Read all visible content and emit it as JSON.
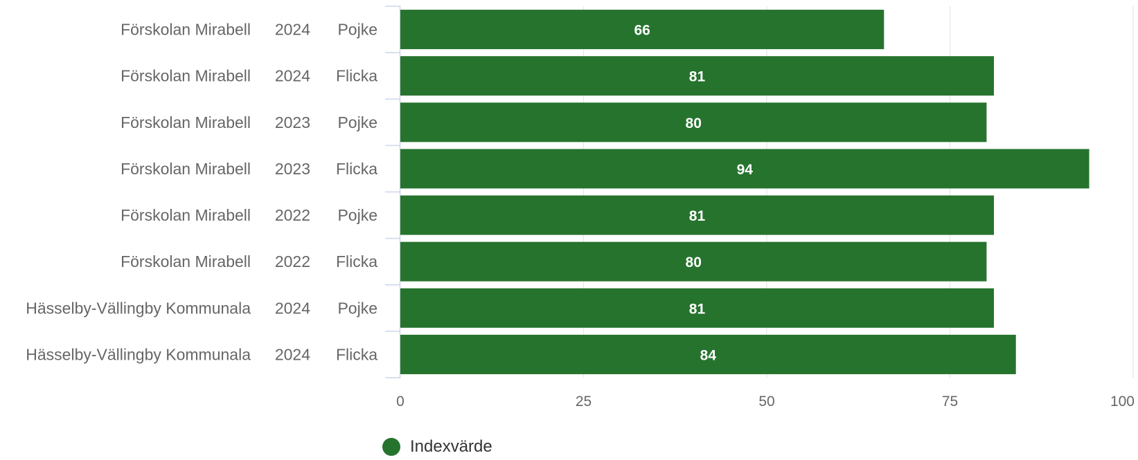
{
  "chart_data": {
    "type": "bar",
    "orientation": "horizontal",
    "categories": [
      [
        "Förskolan Mirabell",
        "2024",
        "Pojke"
      ],
      [
        "Förskolan Mirabell",
        "2024",
        "Flicka"
      ],
      [
        "Förskolan Mirabell",
        "2023",
        "Pojke"
      ],
      [
        "Förskolan Mirabell",
        "2023",
        "Flicka"
      ],
      [
        "Förskolan Mirabell",
        "2022",
        "Pojke"
      ],
      [
        "Förskolan Mirabell",
        "2022",
        "Flicka"
      ],
      [
        "Hässelby-Vällingby Kommunala",
        "2024",
        "Pojke"
      ],
      [
        "Hässelby-Vällingby Kommunala",
        "2024",
        "Flicka"
      ]
    ],
    "series": [
      {
        "name": "Indexvärde",
        "values": [
          66,
          81,
          80,
          94,
          81,
          80,
          81,
          84
        ]
      }
    ],
    "xlim": [
      0,
      100
    ],
    "xticks": [
      0,
      25,
      50,
      75,
      100
    ],
    "grid": true,
    "legend_position": "bottom",
    "color": "#26732d"
  }
}
